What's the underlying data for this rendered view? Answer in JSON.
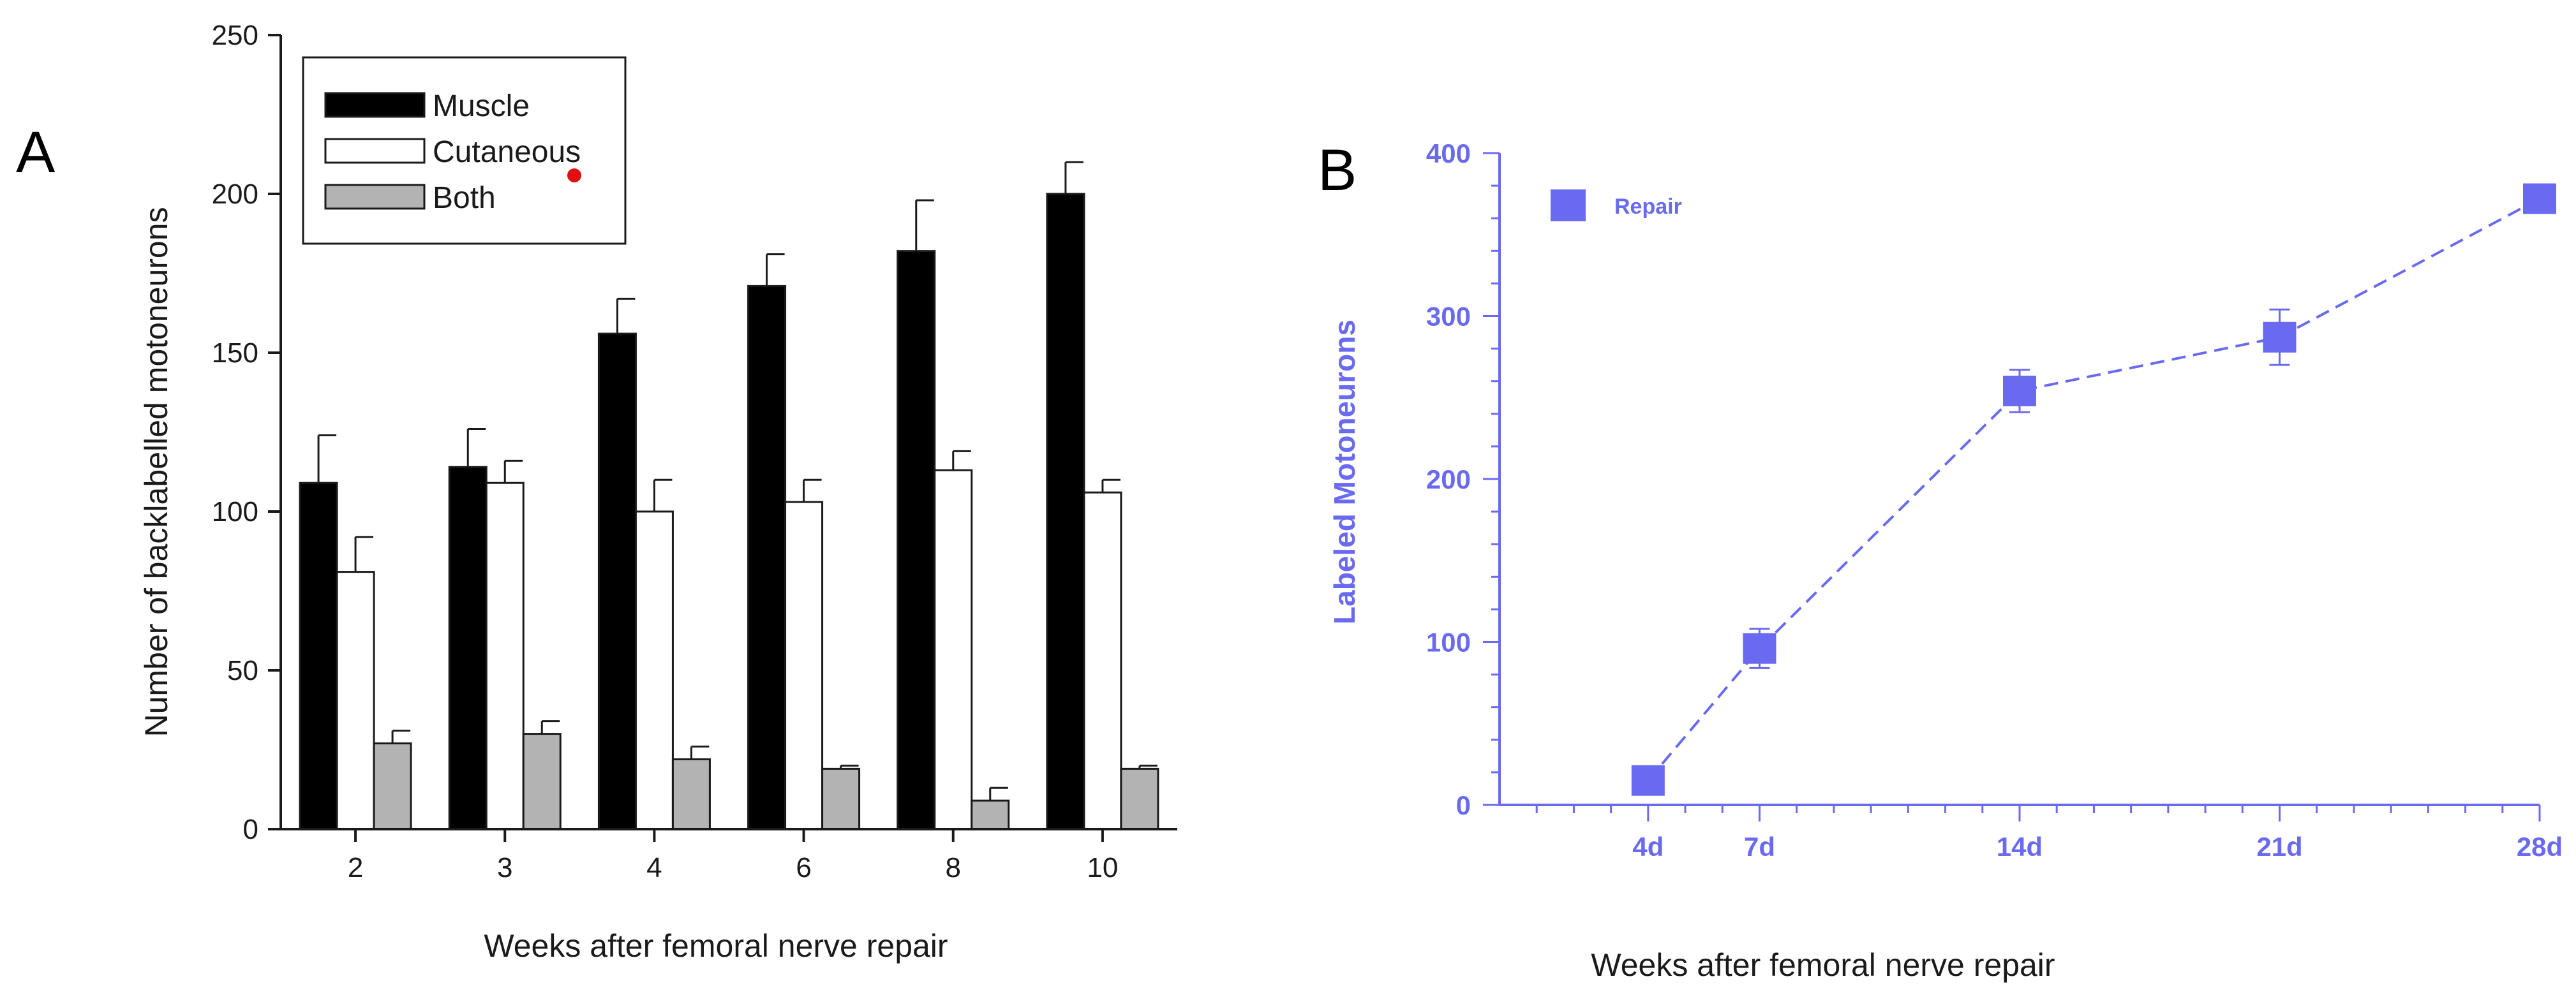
{
  "colors": {
    "muscle": "#000000",
    "cutaneous": "#ffffff",
    "both": "#b3b3b3",
    "axis_a": "#1a1a1a",
    "accent_b": "#6a6af0"
  },
  "chart_data": [
    {
      "panel": "A",
      "type": "bar",
      "title": "",
      "xlabel": "Weeks after femoral nerve repair",
      "ylabel": "Number of backlabelled motoneurons",
      "categories": [
        "2",
        "3",
        "4",
        "6",
        "8",
        "10"
      ],
      "ylim": [
        0,
        250
      ],
      "yticks": [
        0,
        50,
        100,
        150,
        200,
        250
      ],
      "legend_position": "top-left",
      "series": [
        {
          "name": "Muscle",
          "values": [
            109,
            114,
            156,
            171,
            182,
            200
          ],
          "errors": [
            15,
            12,
            11,
            10,
            16,
            10
          ]
        },
        {
          "name": "Cutaneous",
          "values": [
            81,
            109,
            100,
            103,
            113,
            106
          ],
          "errors": [
            11,
            7,
            10,
            7,
            6,
            4
          ]
        },
        {
          "name": "Both",
          "values": [
            27,
            30,
            22,
            19,
            9,
            19
          ],
          "errors": [
            4,
            4,
            4,
            1,
            4,
            1
          ]
        }
      ]
    },
    {
      "panel": "B",
      "type": "line",
      "title": "",
      "xlabel": "Weeks after femoral nerve repair",
      "ylabel": "Labeled Motoneurons",
      "x": [
        4,
        7,
        14,
        21,
        28
      ],
      "xtick_labels": [
        "4d",
        "7d",
        "14d",
        "21d",
        "28d"
      ],
      "xlim": [
        0,
        28
      ],
      "ylim": [
        0,
        400
      ],
      "yticks": [
        0,
        100,
        200,
        300,
        400
      ],
      "legend_position": "top-left",
      "series": [
        {
          "name": "Repair",
          "values": [
            15,
            96,
            254,
            287,
            372
          ],
          "errors": [
            4,
            12,
            13,
            17,
            4
          ]
        }
      ]
    }
  ]
}
